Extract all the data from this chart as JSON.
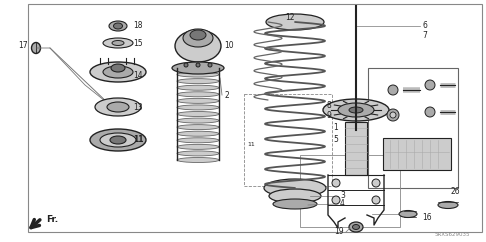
{
  "bg_color": "#ffffff",
  "line_color": "#444444",
  "dark_color": "#222222",
  "gray_light": "#cccccc",
  "gray_mid": "#aaaaaa",
  "gray_dark": "#777777",
  "watermark": "5RXS629035",
  "fr_label": "Fr.",
  "figsize": [
    4.86,
    2.42
  ],
  "dpi": 100
}
